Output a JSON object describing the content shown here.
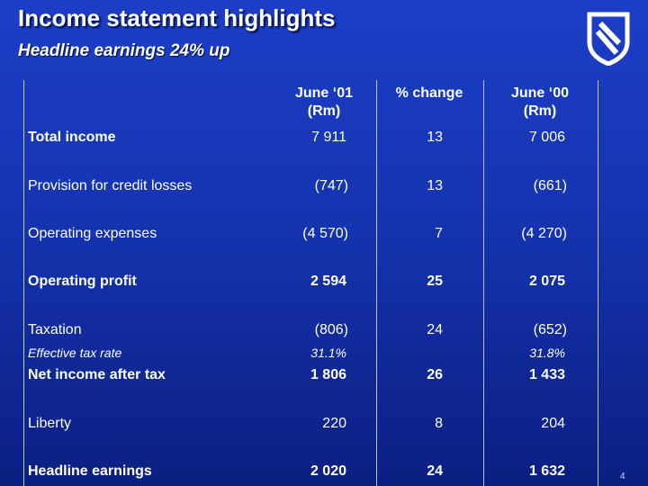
{
  "title": "Income statement highlights",
  "subtitle": "Headline earnings 24% up",
  "logo": "standard-bank-shield-icon",
  "columns": {
    "c1": {
      "line1": "June ‘01",
      "line2": "(Rm)"
    },
    "c2": {
      "line1": "% change"
    },
    "c3": {
      "line1": "June ‘00",
      "line2": "(Rm)"
    }
  },
  "rows": [
    {
      "label": "Total income",
      "c1": "7 911",
      "c2": "13",
      "c3": "7 006"
    },
    {
      "label": "Provision for credit losses",
      "c1": "(747)",
      "c2": "13",
      "c3": "(661)"
    },
    {
      "label": "Operating expenses",
      "c1": "(4 570)",
      "c2": "7",
      "c3": "(4 270)"
    },
    {
      "label": "Operating profit",
      "c1": "2 594",
      "c2": "25",
      "c3": "2 075"
    },
    {
      "label": "Taxation",
      "c1": "(806)",
      "c2": "24",
      "c3": "(652)"
    },
    {
      "label": "Effective tax rate",
      "c1": "31.1%",
      "c2": "",
      "c3": "31.8%"
    },
    {
      "label": "Net income after tax",
      "c1": "1 806",
      "c2": "26",
      "c3": "1 433"
    },
    {
      "label": "Liberty",
      "c1": "220",
      "c2": "8",
      "c3": "204"
    },
    {
      "label": "Headline earnings",
      "c1": "2 020",
      "c2": "24",
      "c3": "1 632"
    }
  ],
  "page_number": "4",
  "colors": {
    "background": "#1534b0",
    "rule": "#b8c6ff",
    "text": "#ffffff"
  }
}
